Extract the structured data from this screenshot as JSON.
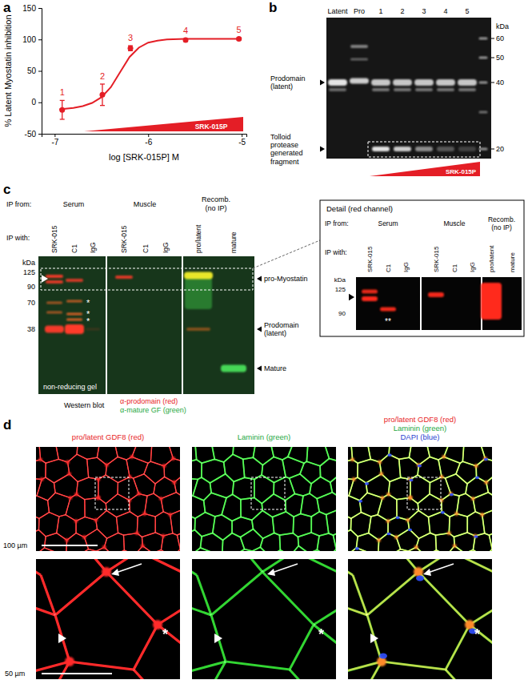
{
  "figure": {
    "panel_labels": [
      "a",
      "b",
      "c",
      "d"
    ]
  },
  "chart_data": {
    "type": "scatter",
    "y_label": "% Latent Myostatin inhibition",
    "x_label": "log [SRK-015P] M",
    "ramp_label": "SRK-015P",
    "xlim": [
      -7.14,
      -4.95
    ],
    "xticks": [
      -7,
      -6,
      -5
    ],
    "ylim": [
      -50,
      150
    ],
    "yticks": [
      -50,
      0,
      50,
      100,
      150
    ],
    "grid": false,
    "series": [
      {
        "type": "scatter",
        "color": "#e41e26",
        "marker": "circle",
        "x": [
          -6.92,
          -6.49,
          -6.19,
          -5.6,
          -5.03
        ],
        "values": [
          -12,
          12,
          86,
          99,
          101
        ],
        "errors": [
          15,
          17,
          4,
          2,
          2
        ],
        "point_labels": [
          "1",
          "2",
          "3",
          "4",
          "5"
        ]
      },
      {
        "type": "line",
        "color": "#e41e26",
        "line_style": "solid",
        "x": [
          -6.95,
          -6.8,
          -6.7,
          -6.6,
          -6.5,
          -6.4,
          -6.3,
          -6.2,
          -6.1,
          -6.0,
          -5.9,
          -5.8,
          -5.6,
          -5.4,
          -5.2,
          -5.0
        ],
        "values": [
          -11,
          -9,
          -6,
          -1,
          8,
          24,
          48,
          72,
          87,
          95,
          98,
          100,
          101,
          101,
          101,
          101
        ]
      }
    ]
  },
  "blot_b": {
    "lanes": [
      "Latent",
      "Pro",
      "1",
      "2",
      "3",
      "4",
      "5"
    ],
    "kda_title": "kDa",
    "kda": [
      60,
      50,
      40,
      20
    ],
    "band_labels": [
      "Prodomain (latent)",
      "Tolloid protease generated fragment"
    ],
    "ramp_label": "SRK-015P"
  },
  "blot_c": {
    "ip_from_title": "IP from:",
    "ip_with_title": "IP with:",
    "groups": [
      {
        "label": [
          "Serum"
        ],
        "lanes": [
          "SRK-015",
          "C1",
          "IgG"
        ]
      },
      {
        "label": [
          "Muscle"
        ],
        "lanes": [
          "SRK-015",
          "C1",
          "IgG"
        ]
      },
      {
        "label": [
          "Recomb.",
          "(no IP)"
        ],
        "lanes": [
          "pro/latent",
          "mature"
        ]
      }
    ],
    "kda_title": "kDa",
    "kda": [
      125,
      90,
      70,
      38
    ],
    "band_labels": [
      "pro-Myostatin",
      "Prodomain (latent)",
      "Mature"
    ],
    "asterisks": [
      "*",
      "*",
      "*"
    ],
    "gel_note": "non-reducing gel",
    "legend_title": "Western blot",
    "stains": [
      {
        "label": "α-prodomain (red)",
        "color": "#e8251f"
      },
      {
        "label": "α-mature GF (green)",
        "color": "#27a844"
      }
    ],
    "detail": {
      "title": "Detail (red channel)",
      "kda": [
        125,
        90
      ],
      "asterisk": "**"
    }
  },
  "micrograph_d": {
    "panels": [
      {
        "title": [
          "pro/latent GDF8 (red)"
        ],
        "colors": [
          "#e8251f"
        ]
      },
      {
        "title": [
          "Laminin (green)"
        ],
        "colors": [
          "#27a844"
        ]
      },
      {
        "title": [
          "pro/latent GDF8 (red)",
          "Laminin (green)",
          "DAPI (blue)"
        ],
        "colors": [
          "#e8251f",
          "#27a844",
          "#2a3fd0"
        ]
      }
    ],
    "scale_bars": [
      "100 µm",
      "50 µm"
    ],
    "asterisk": "*"
  }
}
